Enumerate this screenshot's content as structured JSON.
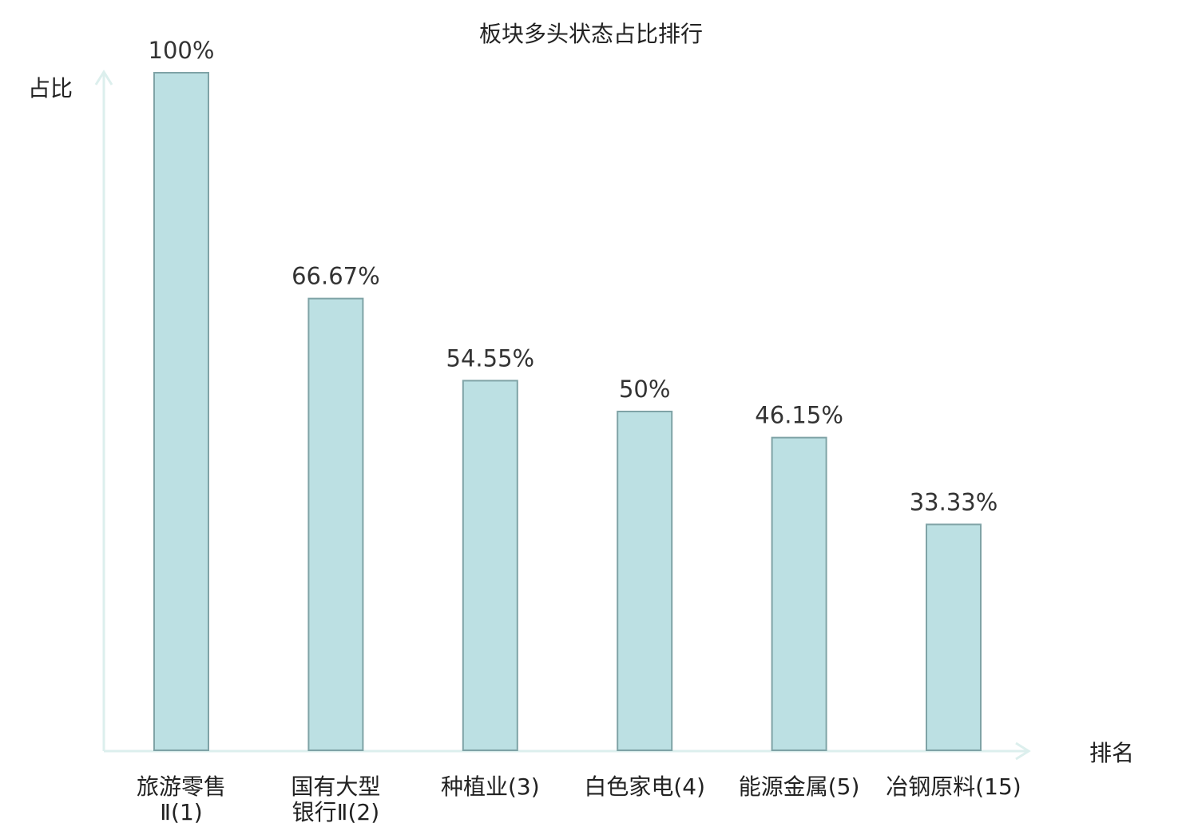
{
  "chart_data": {
    "type": "bar",
    "title": "板块多头状态占比排行",
    "ylabel": "占比",
    "xlabel": "排名",
    "ylim": [
      0,
      100
    ],
    "grid": false,
    "legend": "none",
    "categories": [
      {
        "lines": [
          "旅游零售",
          "Ⅱ(1)"
        ],
        "highlight": false
      },
      {
        "lines": [
          "国有大型",
          "银行Ⅱ(2)"
        ],
        "highlight": false
      },
      {
        "lines": [
          "种植业(3)"
        ],
        "highlight": false
      },
      {
        "lines": [
          "白色家电(4)"
        ],
        "highlight": false
      },
      {
        "lines": [
          "能源金属(5)"
        ],
        "highlight": false
      },
      {
        "lines": [
          "冶钢原料(15)"
        ],
        "highlight": true
      }
    ],
    "values": [
      100,
      66.67,
      54.55,
      50,
      46.15,
      33.33
    ],
    "value_labels": [
      "100%",
      "66.67%",
      "54.55%",
      "50%",
      "46.15%",
      "33.33%"
    ]
  },
  "colors": {
    "bar_fill": "#bce0e3",
    "bar_stroke": "#7fa3a6",
    "axis": "#dcefed",
    "highlight": "#e02020",
    "text": "#222222",
    "value_text": "#333333"
  }
}
